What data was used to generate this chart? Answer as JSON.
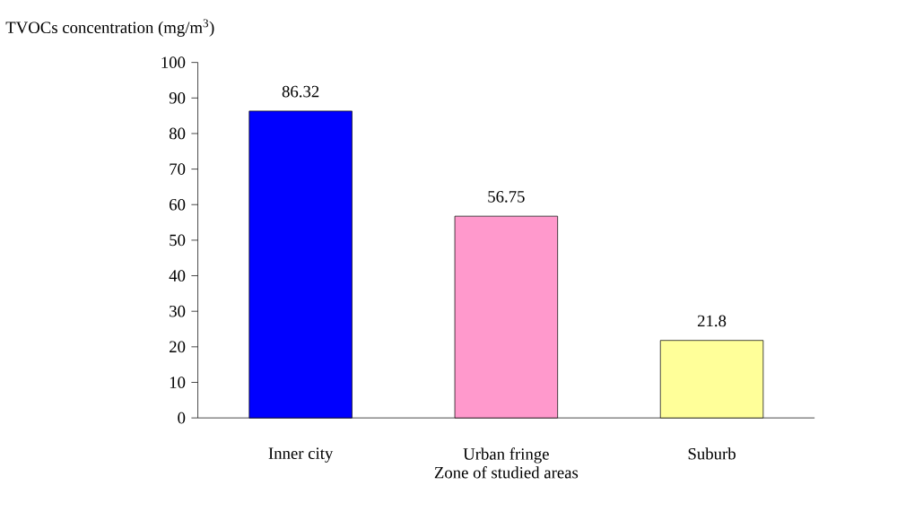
{
  "chart_data": {
    "type": "bar",
    "ylabel": "TVOCs concentration (mg/m$^{3}$)",
    "xlabel": "Zone of studied areas",
    "categories": [
      "Inner city",
      "Urban fringe",
      "Suburb"
    ],
    "values": [
      86.32,
      56.75,
      21.8
    ],
    "colors": [
      "#0000ff",
      "#ff99cc",
      "#ffff99"
    ],
    "ylim": [
      0,
      100
    ],
    "yticks": [
      0,
      10,
      20,
      30,
      40,
      50,
      60,
      70,
      80,
      90,
      100
    ],
    "data_labels": true
  }
}
